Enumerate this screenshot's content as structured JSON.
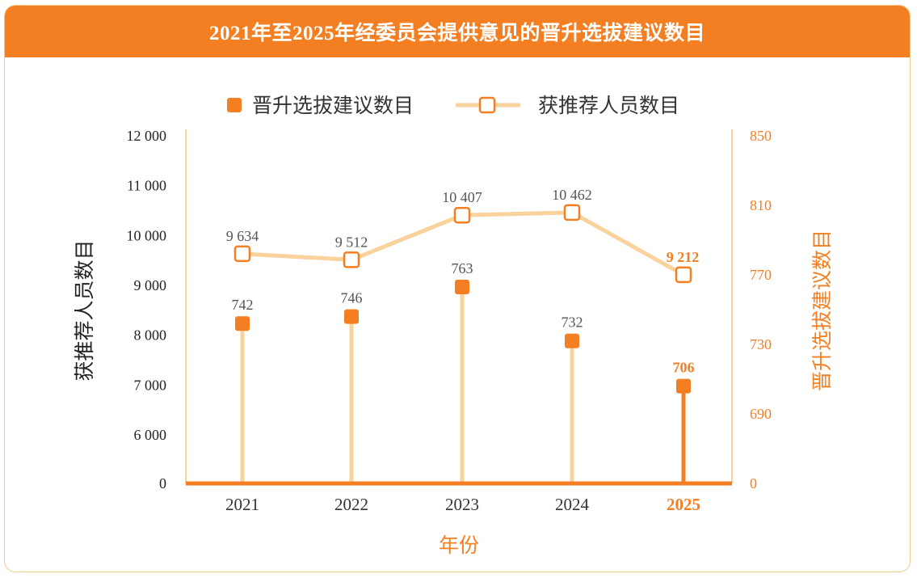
{
  "title": "2021年至2025年经委员会提供意见的晋升选拔建议数目",
  "colors": {
    "primary": "#f47f22",
    "light": "#f9d29c",
    "axis_left": "#222222",
    "label_gray": "#555555"
  },
  "chart_data": {
    "type": "bar",
    "subtype": "lollipop with line",
    "xlabel": "年份",
    "ylabel_left": "获推荐人员数目",
    "ylabel_right": "晋升选拔建议数目",
    "categories": [
      "2021",
      "2022",
      "2023",
      "2024",
      "2025"
    ],
    "highlight_category": "2025",
    "left_ticks": [
      "0",
      "6 000",
      "7 000",
      "8 000",
      "9 000",
      "10 000",
      "11 000",
      "12 000"
    ],
    "left_tick_values": [
      5300,
      6000,
      7000,
      8000,
      9000,
      10000,
      11000,
      12000
    ],
    "left_axis_break": "0 at baseline, continuous 6000–12000",
    "right_ticks": [
      "0",
      "690",
      "730",
      "770",
      "810",
      "850"
    ],
    "right_tick_values": [
      650,
      690,
      730,
      770,
      810,
      850
    ],
    "right_axis_break": "0 at baseline, continuous 690–850",
    "legend": {
      "position": "top-center"
    },
    "series": [
      {
        "name": "晋升选拔建议数目",
        "axis": "right",
        "style": "lollipop filled square",
        "values": [
          742,
          746,
          763,
          732,
          706
        ],
        "labels": [
          "742",
          "746",
          "763",
          "732",
          "706"
        ]
      },
      {
        "name": "获推荐人员数目",
        "axis": "left",
        "style": "line hollow square",
        "values": [
          9634,
          9512,
          10407,
          10462,
          9212
        ],
        "labels": [
          "9 634",
          "9 512",
          "10 407",
          "10 462",
          "9 212"
        ]
      }
    ]
  }
}
